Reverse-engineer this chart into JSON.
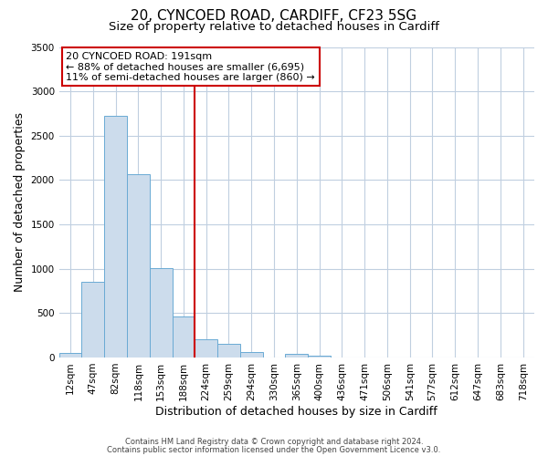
{
  "title_line1": "20, CYNCOED ROAD, CARDIFF, CF23 5SG",
  "title_line2": "Size of property relative to detached houses in Cardiff",
  "xlabel": "Distribution of detached houses by size in Cardiff",
  "ylabel": "Number of detached properties",
  "bar_labels": [
    "12sqm",
    "47sqm",
    "82sqm",
    "118sqm",
    "153sqm",
    "188sqm",
    "224sqm",
    "259sqm",
    "294sqm",
    "330sqm",
    "365sqm",
    "400sqm",
    "436sqm",
    "471sqm",
    "506sqm",
    "541sqm",
    "577sqm",
    "612sqm",
    "647sqm",
    "683sqm",
    "718sqm"
  ],
  "bar_values": [
    55,
    850,
    2720,
    2070,
    1010,
    460,
    210,
    150,
    60,
    0,
    40,
    20,
    0,
    0,
    0,
    0,
    0,
    0,
    0,
    0,
    0
  ],
  "bar_color": "#ccdcec",
  "bar_edge_color": "#6aaad4",
  "vline_x": 5.5,
  "vline_color": "#cc0000",
  "ylim": [
    0,
    3500
  ],
  "yticks": [
    0,
    500,
    1000,
    1500,
    2000,
    2500,
    3000,
    3500
  ],
  "annotation_title": "20 CYNCOED ROAD: 191sqm",
  "annotation_line1": "← 88% of detached houses are smaller (6,695)",
  "annotation_line2": "11% of semi-detached houses are larger (860) →",
  "annotation_box_color": "#ffffff",
  "annotation_box_edge": "#cc0000",
  "footer1": "Contains HM Land Registry data © Crown copyright and database right 2024.",
  "footer2": "Contains public sector information licensed under the Open Government Licence v3.0.",
  "bg_color": "#ffffff",
  "grid_color": "#c0cfe0",
  "title_fontsize": 11,
  "subtitle_fontsize": 9.5,
  "tick_fontsize": 7.5,
  "label_fontsize": 9,
  "annotation_fontsize": 8,
  "footer_fontsize": 6
}
